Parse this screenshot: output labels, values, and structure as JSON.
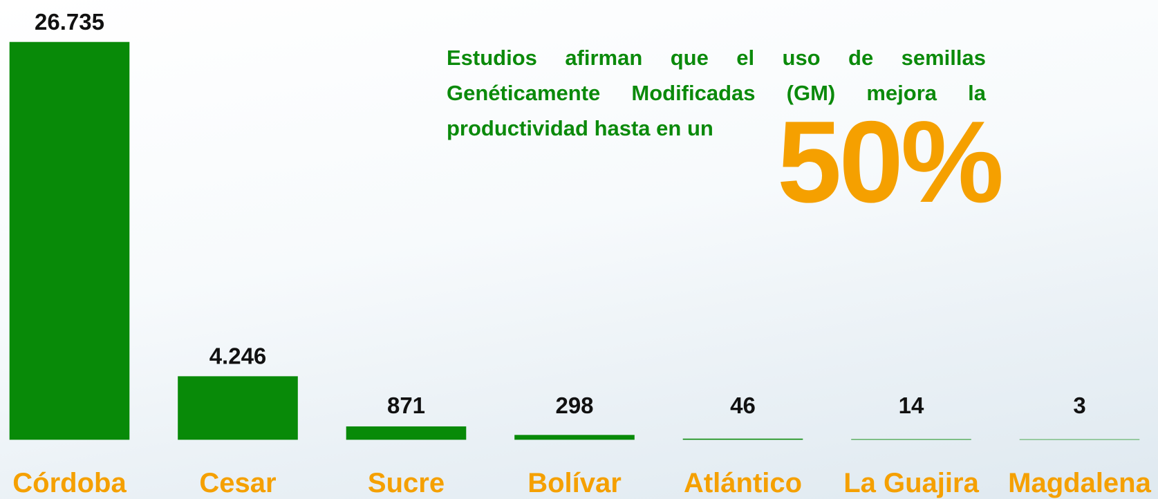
{
  "chart_data": {
    "type": "bar",
    "categories": [
      "Córdoba",
      "Cesar",
      "Sucre",
      "Bolívar",
      "Atlántico",
      "La Guajira",
      "Magdalena"
    ],
    "values": [
      26735,
      4246,
      871,
      298,
      46,
      14,
      3
    ],
    "value_labels": [
      "26.735",
      "4.246",
      "871",
      "298",
      "46",
      "14",
      "3"
    ],
    "color": "#088a08",
    "annotation": "Estudios afirman que el uso de semillas Genéticamente Modificadas (GM) mejora la productividad hasta en un",
    "highlight": "50%"
  }
}
